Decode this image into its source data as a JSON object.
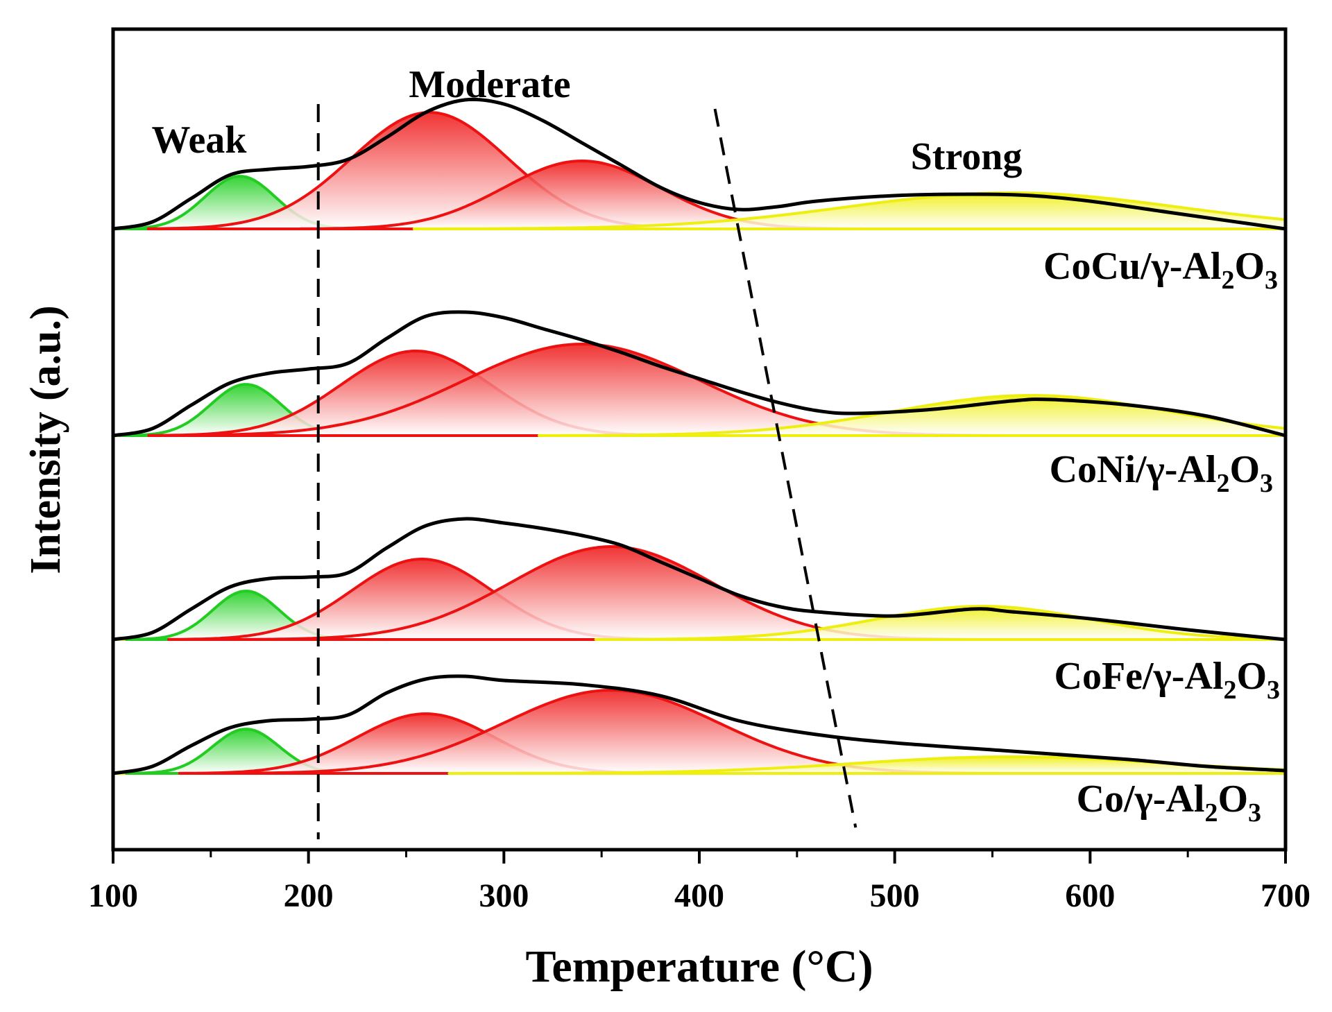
{
  "chart_data": {
    "type": "line",
    "title": "",
    "xlabel": "Temperature (°C)",
    "ylabel": "Intensity (a.u.)",
    "xlim": [
      100,
      700
    ],
    "xticks": [
      100,
      200,
      300,
      400,
      500,
      600,
      700
    ],
    "yticks": [],
    "grid": false,
    "legend": "none",
    "region_labels": [
      {
        "text": "Weak",
        "x": 145
      },
      {
        "text": "Moderate",
        "x": 290
      },
      {
        "text": "Strong",
        "x": 535
      }
    ],
    "divider_lines": [
      {
        "name": "weak-moderate-divider",
        "x_top": 205,
        "x_bottom": 205
      },
      {
        "name": "moderate-strong-divider",
        "x_top": 408,
        "x_bottom": 480
      }
    ],
    "series": [
      {
        "name": "CoCu/γ-Al2O3",
        "label_main": "CoCu/γ-Al",
        "label_sub1": "2",
        "label_mid": "O",
        "label_sub2": "3",
        "onset": 100,
        "baseline_slope": 0,
        "peaks": [
          {
            "type": "weak",
            "center": 165,
            "amplitude": 0.38,
            "sigma": 18
          },
          {
            "type": "moderate",
            "center": 262,
            "amplitude": 0.84,
            "sigma": 40
          },
          {
            "type": "moderate",
            "center": 340,
            "amplitude": 0.49,
            "sigma": 40
          },
          {
            "type": "strong",
            "center": 560,
            "amplitude": 0.26,
            "sigma": 85
          }
        ],
        "envelope": [
          [
            100,
            0.0
          ],
          [
            120,
            0.05
          ],
          [
            140,
            0.22
          ],
          [
            160,
            0.39
          ],
          [
            180,
            0.43
          ],
          [
            200,
            0.45
          ],
          [
            220,
            0.5
          ],
          [
            240,
            0.66
          ],
          [
            260,
            0.84
          ],
          [
            280,
            0.93
          ],
          [
            300,
            0.9
          ],
          [
            320,
            0.78
          ],
          [
            340,
            0.62
          ],
          [
            360,
            0.46
          ],
          [
            380,
            0.3
          ],
          [
            400,
            0.19
          ],
          [
            420,
            0.14
          ],
          [
            440,
            0.16
          ],
          [
            460,
            0.2
          ],
          [
            500,
            0.24
          ],
          [
            540,
            0.25
          ],
          [
            570,
            0.24
          ],
          [
            600,
            0.2
          ],
          [
            640,
            0.12
          ],
          [
            680,
            0.04
          ],
          [
            700,
            0.0
          ]
        ]
      },
      {
        "name": "CoNi/γ-Al2O3",
        "label_main": "CoNi/γ-Al",
        "label_sub1": "2",
        "label_mid": "O",
        "label_sub2": "3",
        "onset": 100,
        "baseline_slope": 0,
        "peaks": [
          {
            "type": "weak",
            "center": 168,
            "amplitude": 0.37,
            "sigma": 18
          },
          {
            "type": "moderate",
            "center": 255,
            "amplitude": 0.61,
            "sigma": 38
          },
          {
            "type": "moderate",
            "center": 340,
            "amplitude": 0.66,
            "sigma": 60
          },
          {
            "type": "strong",
            "center": 570,
            "amplitude": 0.29,
            "sigma": 70
          }
        ],
        "envelope": [
          [
            100,
            0.0
          ],
          [
            120,
            0.05
          ],
          [
            140,
            0.22
          ],
          [
            160,
            0.38
          ],
          [
            180,
            0.45
          ],
          [
            200,
            0.48
          ],
          [
            220,
            0.52
          ],
          [
            240,
            0.7
          ],
          [
            260,
            0.86
          ],
          [
            280,
            0.89
          ],
          [
            300,
            0.85
          ],
          [
            320,
            0.77
          ],
          [
            340,
            0.69
          ],
          [
            360,
            0.6
          ],
          [
            380,
            0.5
          ],
          [
            400,
            0.41
          ],
          [
            420,
            0.32
          ],
          [
            440,
            0.24
          ],
          [
            460,
            0.18
          ],
          [
            480,
            0.16
          ],
          [
            520,
            0.19
          ],
          [
            560,
            0.25
          ],
          [
            580,
            0.26
          ],
          [
            620,
            0.22
          ],
          [
            660,
            0.14
          ],
          [
            700,
            0.0
          ]
        ]
      },
      {
        "name": "CoFe/γ-Al2O3",
        "label_main": "CoFe/γ-Al",
        "label_sub1": "2",
        "label_mid": "O",
        "label_sub2": "3",
        "onset": 100,
        "baseline_slope": 0,
        "peaks": [
          {
            "type": "weak",
            "center": 168,
            "amplitude": 0.35,
            "sigma": 17
          },
          {
            "type": "moderate",
            "center": 258,
            "amplitude": 0.58,
            "sigma": 36
          },
          {
            "type": "moderate",
            "center": 355,
            "amplitude": 0.67,
            "sigma": 52
          },
          {
            "type": "strong",
            "center": 545,
            "amplitude": 0.24,
            "sigma": 55
          }
        ],
        "envelope": [
          [
            100,
            0.0
          ],
          [
            120,
            0.05
          ],
          [
            140,
            0.22
          ],
          [
            160,
            0.38
          ],
          [
            180,
            0.44
          ],
          [
            200,
            0.45
          ],
          [
            220,
            0.48
          ],
          [
            240,
            0.66
          ],
          [
            260,
            0.82
          ],
          [
            280,
            0.87
          ],
          [
            300,
            0.84
          ],
          [
            320,
            0.8
          ],
          [
            340,
            0.75
          ],
          [
            360,
            0.68
          ],
          [
            380,
            0.56
          ],
          [
            400,
            0.44
          ],
          [
            420,
            0.32
          ],
          [
            440,
            0.24
          ],
          [
            460,
            0.2
          ],
          [
            500,
            0.17
          ],
          [
            540,
            0.22
          ],
          [
            560,
            0.2
          ],
          [
            600,
            0.15
          ],
          [
            650,
            0.07
          ],
          [
            700,
            0.0
          ]
        ]
      },
      {
        "name": "Co/γ-Al2O3",
        "label_main": "Co/γ-Al",
        "label_sub1": "2",
        "label_mid": "O",
        "label_sub2": "3",
        "onset": 100,
        "baseline_slope": 0,
        "peaks": [
          {
            "type": "weak",
            "center": 168,
            "amplitude": 0.32,
            "sigma": 17
          },
          {
            "type": "moderate",
            "center": 260,
            "amplitude": 0.43,
            "sigma": 35
          },
          {
            "type": "moderate",
            "center": 355,
            "amplitude": 0.6,
            "sigma": 55
          },
          {
            "type": "strong",
            "center": 560,
            "amplitude": 0.12,
            "sigma": 80
          }
        ],
        "envelope": [
          [
            100,
            0.0
          ],
          [
            120,
            0.05
          ],
          [
            140,
            0.2
          ],
          [
            160,
            0.33
          ],
          [
            180,
            0.38
          ],
          [
            200,
            0.39
          ],
          [
            220,
            0.42
          ],
          [
            240,
            0.58
          ],
          [
            260,
            0.68
          ],
          [
            280,
            0.7
          ],
          [
            300,
            0.67
          ],
          [
            340,
            0.64
          ],
          [
            380,
            0.56
          ],
          [
            420,
            0.38
          ],
          [
            460,
            0.28
          ],
          [
            500,
            0.22
          ],
          [
            560,
            0.16
          ],
          [
            620,
            0.1
          ],
          [
            660,
            0.05
          ],
          [
            700,
            0.02
          ]
        ]
      }
    ]
  },
  "colors": {
    "envelope": "#000000",
    "weak_fill": "#22cc22",
    "moderate_fill": "#ee1111",
    "strong_fill": "#eeee11",
    "divider": "#000000"
  }
}
